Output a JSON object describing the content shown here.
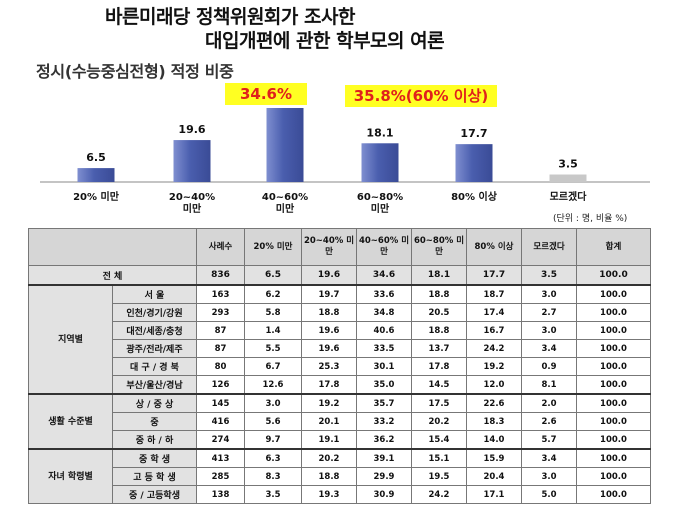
{
  "header": {
    "title_line1": "바른미래당 정책위원회가 조사한",
    "title_line2": "대입개편에 관한 학부모의 여론",
    "subtitle": "정시(수능중심전형) 적정 비중"
  },
  "highlights": [
    "34.6%",
    "35.8%(60% 이상)"
  ],
  "unit_note": "(단위 : 명, 비율 %)",
  "colors": {
    "bar": "#4a5eae",
    "bar_unknown": "#c8c8c8",
    "highlight_bg": "#ffff22",
    "highlight_text": "#e0201c",
    "header_bg": "#d6d6d6"
  },
  "chart_data": {
    "type": "bar",
    "categories": [
      "20% 미만",
      "20~40% 미만",
      "40~60% 미만",
      "60~80% 미만",
      "80% 이상",
      "모르겠다"
    ],
    "category_lines": [
      [
        "20% 미만"
      ],
      [
        "20~40%",
        "미만"
      ],
      [
        "40~60%",
        "미만"
      ],
      [
        "60~80%",
        "미만"
      ],
      [
        "80% 이상"
      ],
      [
        "모르겠다"
      ]
    ],
    "values": [
      6.5,
      19.6,
      34.6,
      18.1,
      17.7,
      3.5
    ],
    "value_labels": [
      "6.5",
      "19.6",
      "",
      "18.1",
      "17.7",
      "3.5"
    ],
    "ylim": [
      0,
      36
    ],
    "grid": false,
    "legend": false
  },
  "table": {
    "columns": [
      "",
      "",
      "사례수",
      "20% 미만",
      "20~40% 미만",
      "40~60% 미만",
      "60~80% 미만",
      "80% 이상",
      "모르겠다",
      "합계"
    ],
    "total": {
      "label": "전 체",
      "values": [
        "836",
        "6.5",
        "19.6",
        "34.6",
        "18.1",
        "17.7",
        "3.5",
        "100.0"
      ]
    },
    "groups": [
      {
        "name": "지역별",
        "rows": [
          {
            "label": "서 울",
            "values": [
              "163",
              "6.2",
              "19.7",
              "33.6",
              "18.8",
              "18.7",
              "3.0",
              "100.0"
            ]
          },
          {
            "label": "인천/경기/강원",
            "values": [
              "293",
              "5.8",
              "18.8",
              "34.8",
              "20.5",
              "17.4",
              "2.7",
              "100.0"
            ]
          },
          {
            "label": "대전/세종/충청",
            "values": [
              "87",
              "1.4",
              "19.6",
              "40.6",
              "18.8",
              "16.7",
              "3.0",
              "100.0"
            ]
          },
          {
            "label": "광주/전라/제주",
            "values": [
              "87",
              "5.5",
              "19.6",
              "33.5",
              "13.7",
              "24.2",
              "3.4",
              "100.0"
            ]
          },
          {
            "label": "대 구 / 경 북",
            "values": [
              "80",
              "6.7",
              "25.3",
              "30.1",
              "17.8",
              "19.2",
              "0.9",
              "100.0"
            ]
          },
          {
            "label": "부산/울산/경남",
            "values": [
              "126",
              "12.6",
              "17.8",
              "35.0",
              "14.5",
              "12.0",
              "8.1",
              "100.0"
            ]
          }
        ]
      },
      {
        "name": "생활 수준별",
        "rows": [
          {
            "label": "상 / 중 상",
            "values": [
              "145",
              "3.0",
              "19.2",
              "35.7",
              "17.5",
              "22.6",
              "2.0",
              "100.0"
            ]
          },
          {
            "label": "중",
            "values": [
              "416",
              "5.6",
              "20.1",
              "33.2",
              "20.2",
              "18.3",
              "2.6",
              "100.0"
            ]
          },
          {
            "label": "중 하 / 하",
            "values": [
              "274",
              "9.7",
              "19.1",
              "36.2",
              "15.4",
              "14.0",
              "5.7",
              "100.0"
            ]
          }
        ]
      },
      {
        "name": "자녀 학령별",
        "rows": [
          {
            "label": "중 학 생",
            "values": [
              "413",
              "6.3",
              "20.2",
              "39.1",
              "15.1",
              "15.9",
              "3.4",
              "100.0"
            ]
          },
          {
            "label": "고 등 학 생",
            "values": [
              "285",
              "8.3",
              "18.8",
              "29.9",
              "19.5",
              "20.4",
              "3.0",
              "100.0"
            ]
          },
          {
            "label": "중 / 고등학생",
            "values": [
              "138",
              "3.5",
              "19.3",
              "30.9",
              "24.2",
              "17.1",
              "5.0",
              "100.0"
            ]
          }
        ]
      }
    ]
  }
}
